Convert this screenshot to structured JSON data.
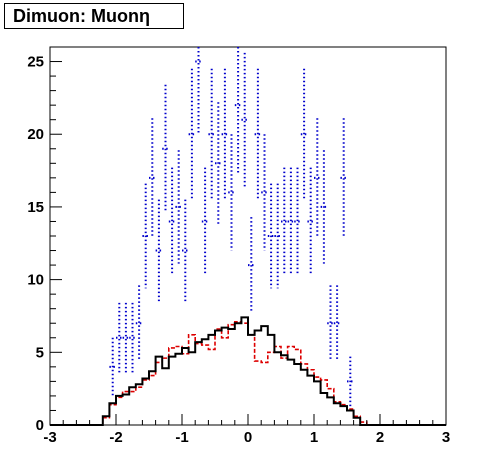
{
  "chart_data": {
    "type": "histogram",
    "title": "Dimuon: Muonη",
    "xlabel": "",
    "ylabel": "",
    "xlim": [
      -3,
      3
    ],
    "ylim": [
      0,
      26
    ],
    "bin_width": 0.1,
    "x_ticks": [
      -3,
      -2,
      -1,
      0,
      1,
      2,
      3
    ],
    "x_tick_labels": [
      "-3",
      "-2",
      "-1",
      "0",
      "1",
      "2",
      "3"
    ],
    "y_ticks": [
      0,
      5,
      10,
      15,
      20,
      25
    ],
    "y_tick_labels": [
      "0",
      "5",
      "10",
      "15",
      "20",
      "25"
    ],
    "series": [
      {
        "style": "black-solid-step",
        "color": "#000000",
        "bin_edges_start": -3.0,
        "values": [
          0,
          0,
          0,
          0,
          0,
          0,
          0,
          0,
          0.6,
          1.5,
          2.0,
          2.1,
          2.6,
          2.8,
          3.2,
          3.7,
          4.7,
          3.9,
          4.7,
          4.9,
          5.3,
          5.0,
          5.7,
          5.9,
          6.2,
          6.5,
          6.7,
          6.6,
          7.0,
          7.4,
          6.2,
          6.5,
          6.8,
          6.2,
          5.0,
          4.8,
          4.5,
          4.2,
          3.8,
          3.4,
          3.0,
          2.2,
          1.9,
          1.5,
          1.3,
          1.0,
          0.5,
          0,
          0,
          0,
          0,
          0,
          0,
          0,
          0,
          0,
          0,
          0,
          0,
          0
        ]
      },
      {
        "style": "red-dashed-step",
        "color": "#dd0000",
        "bin_edges_start": -3.0,
        "values": [
          0,
          0,
          0,
          0,
          0,
          0,
          0,
          0,
          0.5,
          1.4,
          1.9,
          2.3,
          2.3,
          2.6,
          3.1,
          3.4,
          4.3,
          4.6,
          5.3,
          5.4,
          4.9,
          6.2,
          5.6,
          5.5,
          5.2,
          6.6,
          6.0,
          6.9,
          7.1,
          7.0,
          6.2,
          4.4,
          4.3,
          5.0,
          5.4,
          4.6,
          5.4,
          5.2,
          4.2,
          3.8,
          3.3,
          3.1,
          2.5,
          1.6,
          1.4,
          1.1,
          0.6,
          0.2,
          0,
          0,
          0,
          0,
          0,
          0,
          0,
          0,
          0,
          0,
          0,
          0
        ]
      },
      {
        "style": "blue-dotted-errorbars",
        "color": "#0000cc",
        "x": [
          -2.05,
          -1.95,
          -1.85,
          -1.75,
          -1.65,
          -1.55,
          -1.45,
          -1.35,
          -1.25,
          -1.15,
          -1.05,
          -0.95,
          -0.85,
          -0.75,
          -0.65,
          -0.55,
          -0.45,
          -0.35,
          -0.25,
          -0.15,
          -0.05,
          0.05,
          0.15,
          0.25,
          0.35,
          0.45,
          0.55,
          0.65,
          0.75,
          0.85,
          0.95,
          1.05,
          1.15,
          1.25,
          1.35,
          1.45,
          1.55,
          1.65,
          1.75,
          1.85,
          1.95,
          2.05
        ],
        "y": [
          4,
          6,
          6,
          6,
          7,
          13,
          17,
          12,
          19,
          14,
          15,
          12,
          20,
          25,
          14,
          20,
          18,
          20,
          16,
          22,
          21,
          11,
          20,
          16,
          13,
          13,
          14,
          14,
          14,
          20,
          14,
          17,
          15,
          7,
          7,
          17,
          3,
          0,
          0,
          0,
          0,
          0
        ],
        "err": [
          2,
          2.4,
          2.4,
          2.4,
          2.6,
          3.6,
          4.1,
          3.5,
          4.4,
          3.7,
          3.9,
          3.5,
          4.5,
          5,
          3.7,
          4.5,
          4.2,
          4.5,
          4,
          4.7,
          4.6,
          3.3,
          4.5,
          4,
          3.6,
          3.6,
          3.7,
          3.7,
          3.7,
          4.5,
          3.7,
          4.1,
          3.9,
          2.6,
          2.6,
          4.1,
          1.7,
          0,
          0,
          0,
          0,
          0
        ]
      }
    ]
  }
}
